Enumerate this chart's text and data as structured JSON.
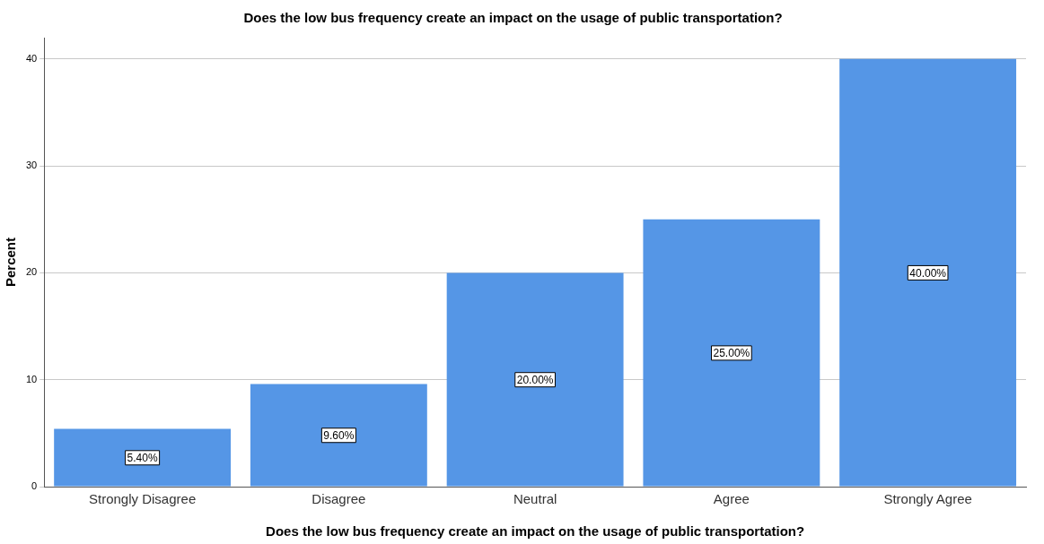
{
  "chart_data": {
    "type": "bar",
    "title": "Does the low bus frequency create an impact on the usage of public transportation?",
    "xlabel": "Does the low bus frequency create an impact on the usage of public transportation?",
    "ylabel": "Percent",
    "categories": [
      "Strongly Disagree",
      "Disagree",
      "Neutral",
      "Agree",
      "Strongly Agree"
    ],
    "values": [
      5.4,
      9.6,
      20,
      25,
      40
    ],
    "value_labels": [
      "5.40%",
      "9.60%",
      "20.00%",
      "25.00%",
      "40.00%"
    ],
    "color": "#5596e6",
    "ylim": [
      0,
      42
    ],
    "yticks": [
      0,
      10,
      20,
      30,
      40
    ],
    "grid": "y",
    "legend": false
  }
}
